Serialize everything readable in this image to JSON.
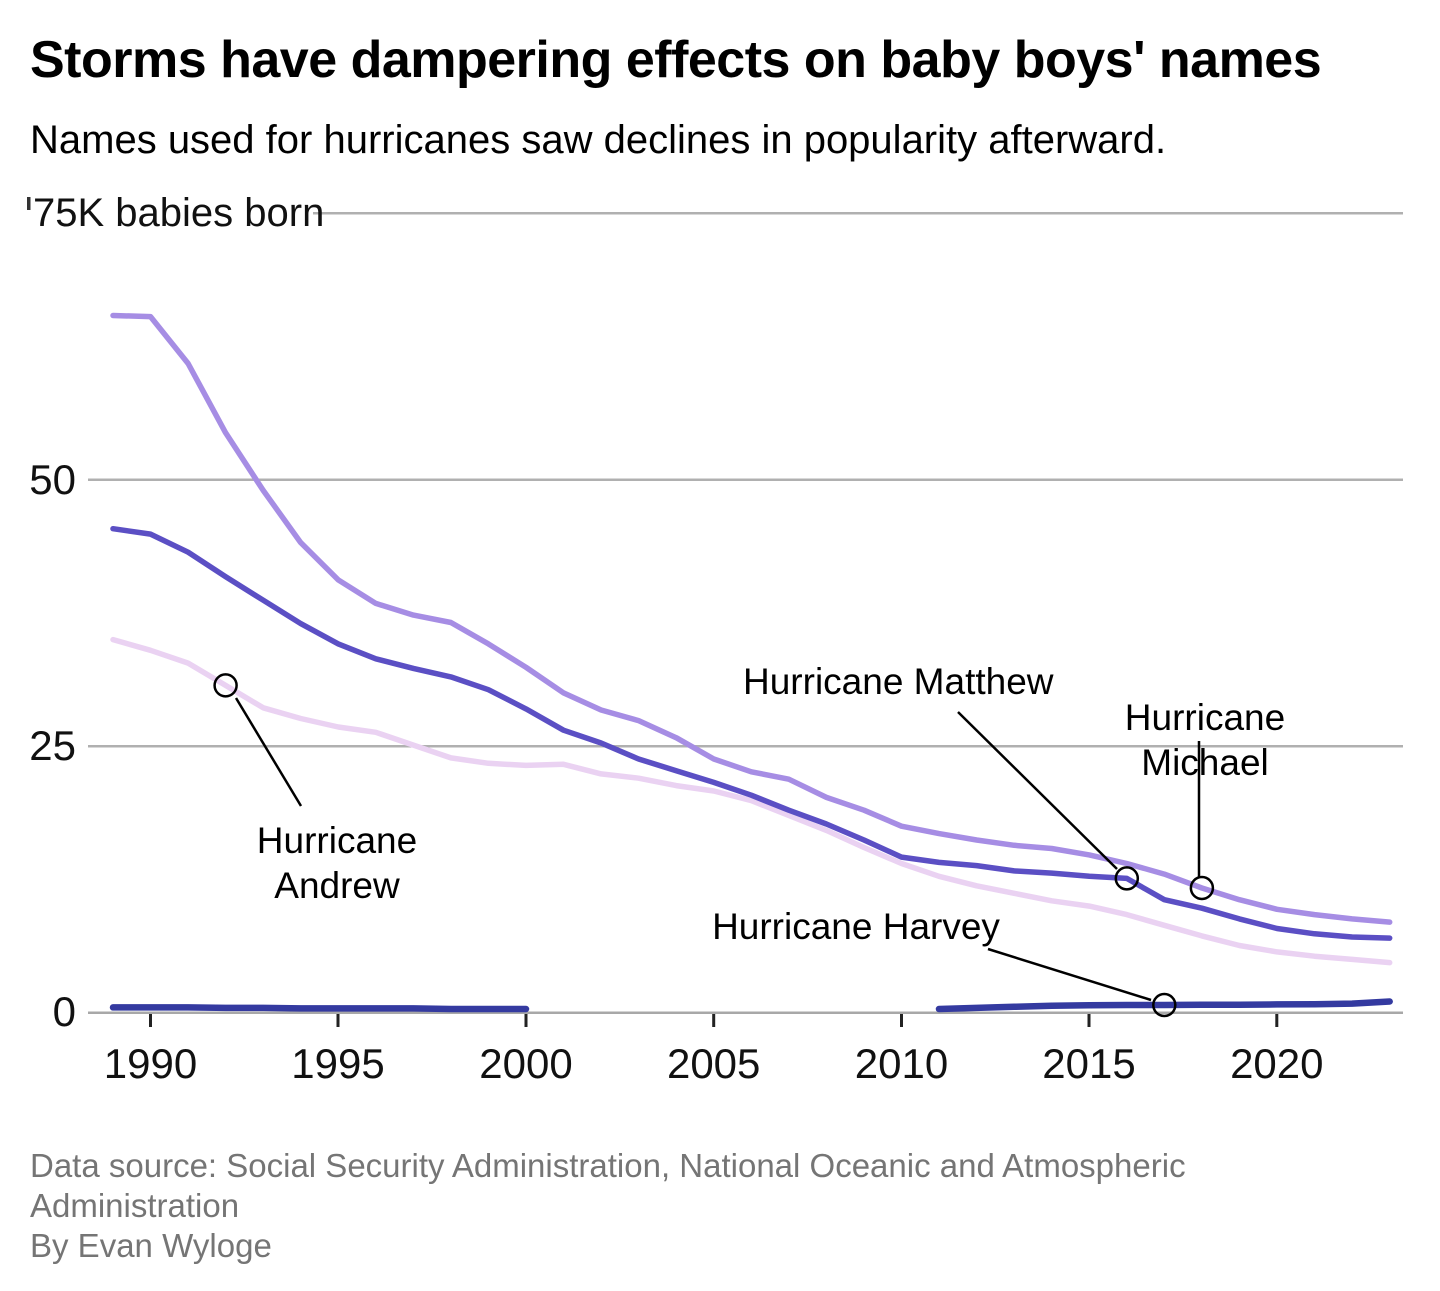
{
  "header": {
    "title": "Storms have dampering effects on baby boys' names",
    "subtitle": "Names used for hurricanes saw declines in popularity afterward."
  },
  "footer": {
    "line1": "Data source: Social Security Administration, National Oceanic and Atmospheric",
    "line2": "Administration",
    "line3": "By Evan Wyloge"
  },
  "chart_data": {
    "type": "line",
    "title": "Storms have dampering effects on baby boys' names",
    "unit": "thousands of babies born per year",
    "ylim": [
      0,
      75
    ],
    "x_range": [
      1989,
      2023
    ],
    "grid": true,
    "legend": "none (series identified by annotations)",
    "x": [
      1989,
      1990,
      1991,
      1992,
      1993,
      1994,
      1995,
      1996,
      1997,
      1998,
      1999,
      2000,
      2001,
      2002,
      2003,
      2004,
      2005,
      2006,
      2007,
      2008,
      2009,
      2010,
      2011,
      2012,
      2013,
      2014,
      2015,
      2016,
      2017,
      2018,
      2019,
      2020,
      2021,
      2022,
      2023
    ],
    "x_tick_labels": [
      "1990",
      "1995",
      "2000",
      "2005",
      "2010",
      "2015",
      "2020"
    ],
    "x_tick_years": [
      1990,
      1995,
      2000,
      2005,
      2010,
      2015,
      2020
    ],
    "y_ticks": [
      {
        "label": "75K babies born",
        "value": 75
      },
      {
        "label": "50",
        "value": 50
      },
      {
        "label": "25",
        "value": 25
      },
      {
        "label": "0",
        "value": 0
      }
    ],
    "series": [
      {
        "name": "Michael",
        "color": "#a68de4",
        "values": [
          65.4,
          65.3,
          60.9,
          54.4,
          49.0,
          44.1,
          40.6,
          38.4,
          37.3,
          36.6,
          34.6,
          32.4,
          30.0,
          28.4,
          27.4,
          25.8,
          23.8,
          22.6,
          21.9,
          20.2,
          19.0,
          17.5,
          16.8,
          16.2,
          15.7,
          15.4,
          14.8,
          14.0,
          13.0,
          11.7,
          10.6,
          9.7,
          9.2,
          8.8,
          8.5
        ]
      },
      {
        "name": "Matthew",
        "color": "#5b4fc4",
        "values": [
          45.4,
          44.9,
          43.2,
          40.9,
          38.7,
          36.5,
          34.6,
          33.2,
          32.3,
          31.5,
          30.3,
          28.5,
          26.5,
          25.3,
          23.8,
          22.7,
          21.6,
          20.4,
          19.0,
          17.7,
          16.2,
          14.6,
          14.1,
          13.8,
          13.3,
          13.1,
          12.8,
          12.6,
          10.6,
          9.8,
          8.8,
          7.9,
          7.4,
          7.1,
          7.0
        ]
      },
      {
        "name": "Andrew",
        "color": "#ead2f2",
        "values": [
          35.0,
          34.0,
          32.8,
          30.7,
          28.6,
          27.6,
          26.8,
          26.3,
          25.1,
          23.9,
          23.4,
          23.2,
          23.3,
          22.4,
          22.0,
          21.3,
          20.8,
          19.9,
          18.5,
          17.1,
          15.5,
          14.0,
          12.8,
          11.9,
          11.2,
          10.5,
          10.0,
          9.2,
          8.2,
          7.2,
          6.3,
          5.7,
          5.3,
          5.0,
          4.7
        ]
      },
      {
        "name": "Harvey",
        "color": "#343aa0",
        "values": [
          0.5,
          0.5,
          0.5,
          0.45,
          0.45,
          0.4,
          0.4,
          0.4,
          0.4,
          0.35,
          0.35,
          0.35,
          null,
          null,
          null,
          null,
          null,
          null,
          null,
          null,
          null,
          null,
          0.35,
          0.45,
          0.55,
          0.65,
          0.7,
          0.72,
          0.72,
          0.75,
          0.75,
          0.78,
          0.8,
          0.85,
          1.05
        ]
      }
    ],
    "annotations": [
      {
        "label": "Hurricane Andrew",
        "label_multiline": "Hurricane\nAndrew",
        "series": "Andrew",
        "year": 1992
      },
      {
        "label": "Hurricane Matthew",
        "series": "Matthew",
        "year": 2016
      },
      {
        "label": "Hurricane Michael",
        "series": "Michael",
        "year": 2018
      },
      {
        "label": "Hurricane Harvey",
        "series": "Harvey",
        "year": 2017
      }
    ]
  }
}
